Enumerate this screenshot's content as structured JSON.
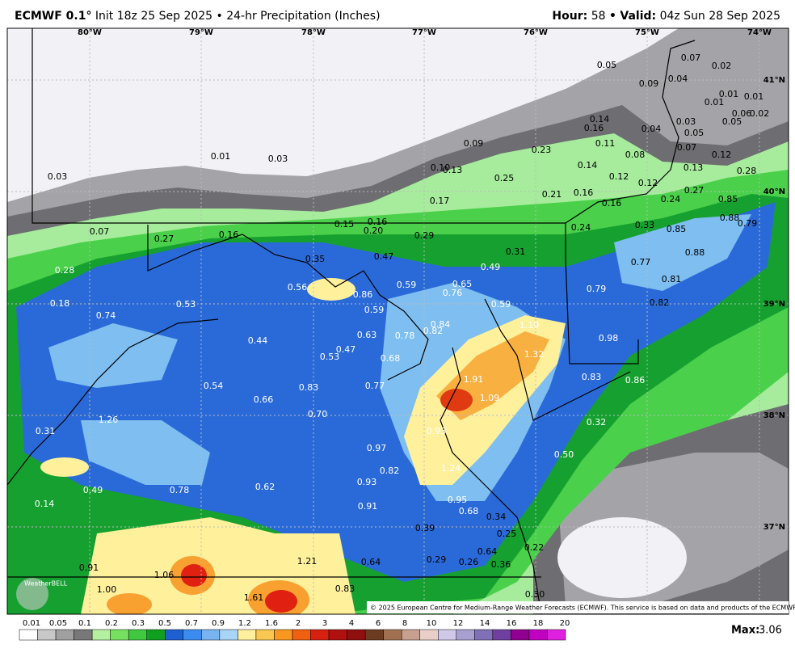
{
  "header": {
    "model": "ECMWF 0.1°",
    "init": "Init 18z 25 Sep 2025 • 24-hr Precipitation (Inches)",
    "hour_label": "Hour:",
    "hour": "58",
    "sep": "•",
    "valid_label": "Valid:",
    "valid": "04z Sun 28 Sep 2025"
  },
  "map": {
    "lon_labels": [
      "80°W",
      "79°W",
      "78°W",
      "77°W",
      "76°W",
      "75°W",
      "74°W"
    ],
    "lat_labels": [
      "41°N",
      "40°N",
      "39°N",
      "38°N",
      "37°N"
    ],
    "labels": [
      "0.05",
      "0.07",
      "0.02",
      "0.09",
      "0.04",
      "0.01",
      "0.01",
      "0.01",
      "0.06",
      "0.02",
      "0.05",
      "0.14",
      "0.16",
      "0.03",
      "0.04",
      "0.05",
      "0.11",
      "0.07",
      "0.12",
      "0.08",
      "0.09",
      "0.23",
      "0.01",
      "0.03",
      "0.03",
      "0.14",
      "0.13",
      "0.28",
      "0.10",
      "0.13",
      "0.25",
      "0.12",
      "0.12",
      "0.27",
      "0.21",
      "0.16",
      "0.24",
      "0.85",
      "0.17",
      "0.16",
      "0.88",
      "0.79",
      "0.15",
      "0.16",
      "0.20",
      "0.33",
      "0.24",
      "0.85",
      "0.07",
      "0.29",
      "0.27",
      "0.16",
      "0.31",
      "0.88",
      "0.35",
      "0.47",
      "0.77",
      "0.49",
      "0.28",
      "0.81",
      "0.59",
      "0.65",
      "0.56",
      "0.79",
      "0.86",
      "0.76",
      "0.18",
      "0.53",
      "0.59",
      "0.82",
      "0.59",
      "0.74",
      "0.84",
      "0.82",
      "0.78",
      "0.63",
      "1.19",
      "0.98",
      "0.44",
      "0.47",
      "0.53",
      "0.68",
      "1.32",
      "0.83",
      "0.86",
      "1.91",
      "0.54",
      "0.83",
      "0.77",
      "0.66",
      "1.09",
      "0.70",
      "1.26",
      "0.32",
      "0.31",
      "0.93",
      "0.97",
      "0.50",
      "0.82",
      "1.24",
      "0.93",
      "0.78",
      "0.62",
      "0.49",
      "0.95",
      "0.14",
      "0.91",
      "0.68",
      "0.34",
      "0.39",
      "0.25",
      "0.22",
      "0.64",
      "1.21",
      "0.64",
      "0.29",
      "0.26",
      "0.36",
      "0.91",
      "1.06",
      "1.00",
      "0.83",
      "0.30",
      "1.61"
    ],
    "copyright": "© 2025 European Centre for Medium-Range Weather Forecasts (ECMWF). This service is based on data and products of the ECMWF.",
    "logo": "WeatherBELL"
  },
  "colorbar": {
    "labels": [
      "0.01",
      "0.05",
      "0.1",
      "0.2",
      "0.3",
      "0.5",
      "0.7",
      "0.9",
      "1.2",
      "1.6",
      "2",
      "3",
      "4",
      "6",
      "8",
      "10",
      "12",
      "14",
      "16",
      "18",
      "20"
    ],
    "max_label": "Max:",
    "max": "3.06"
  }
}
